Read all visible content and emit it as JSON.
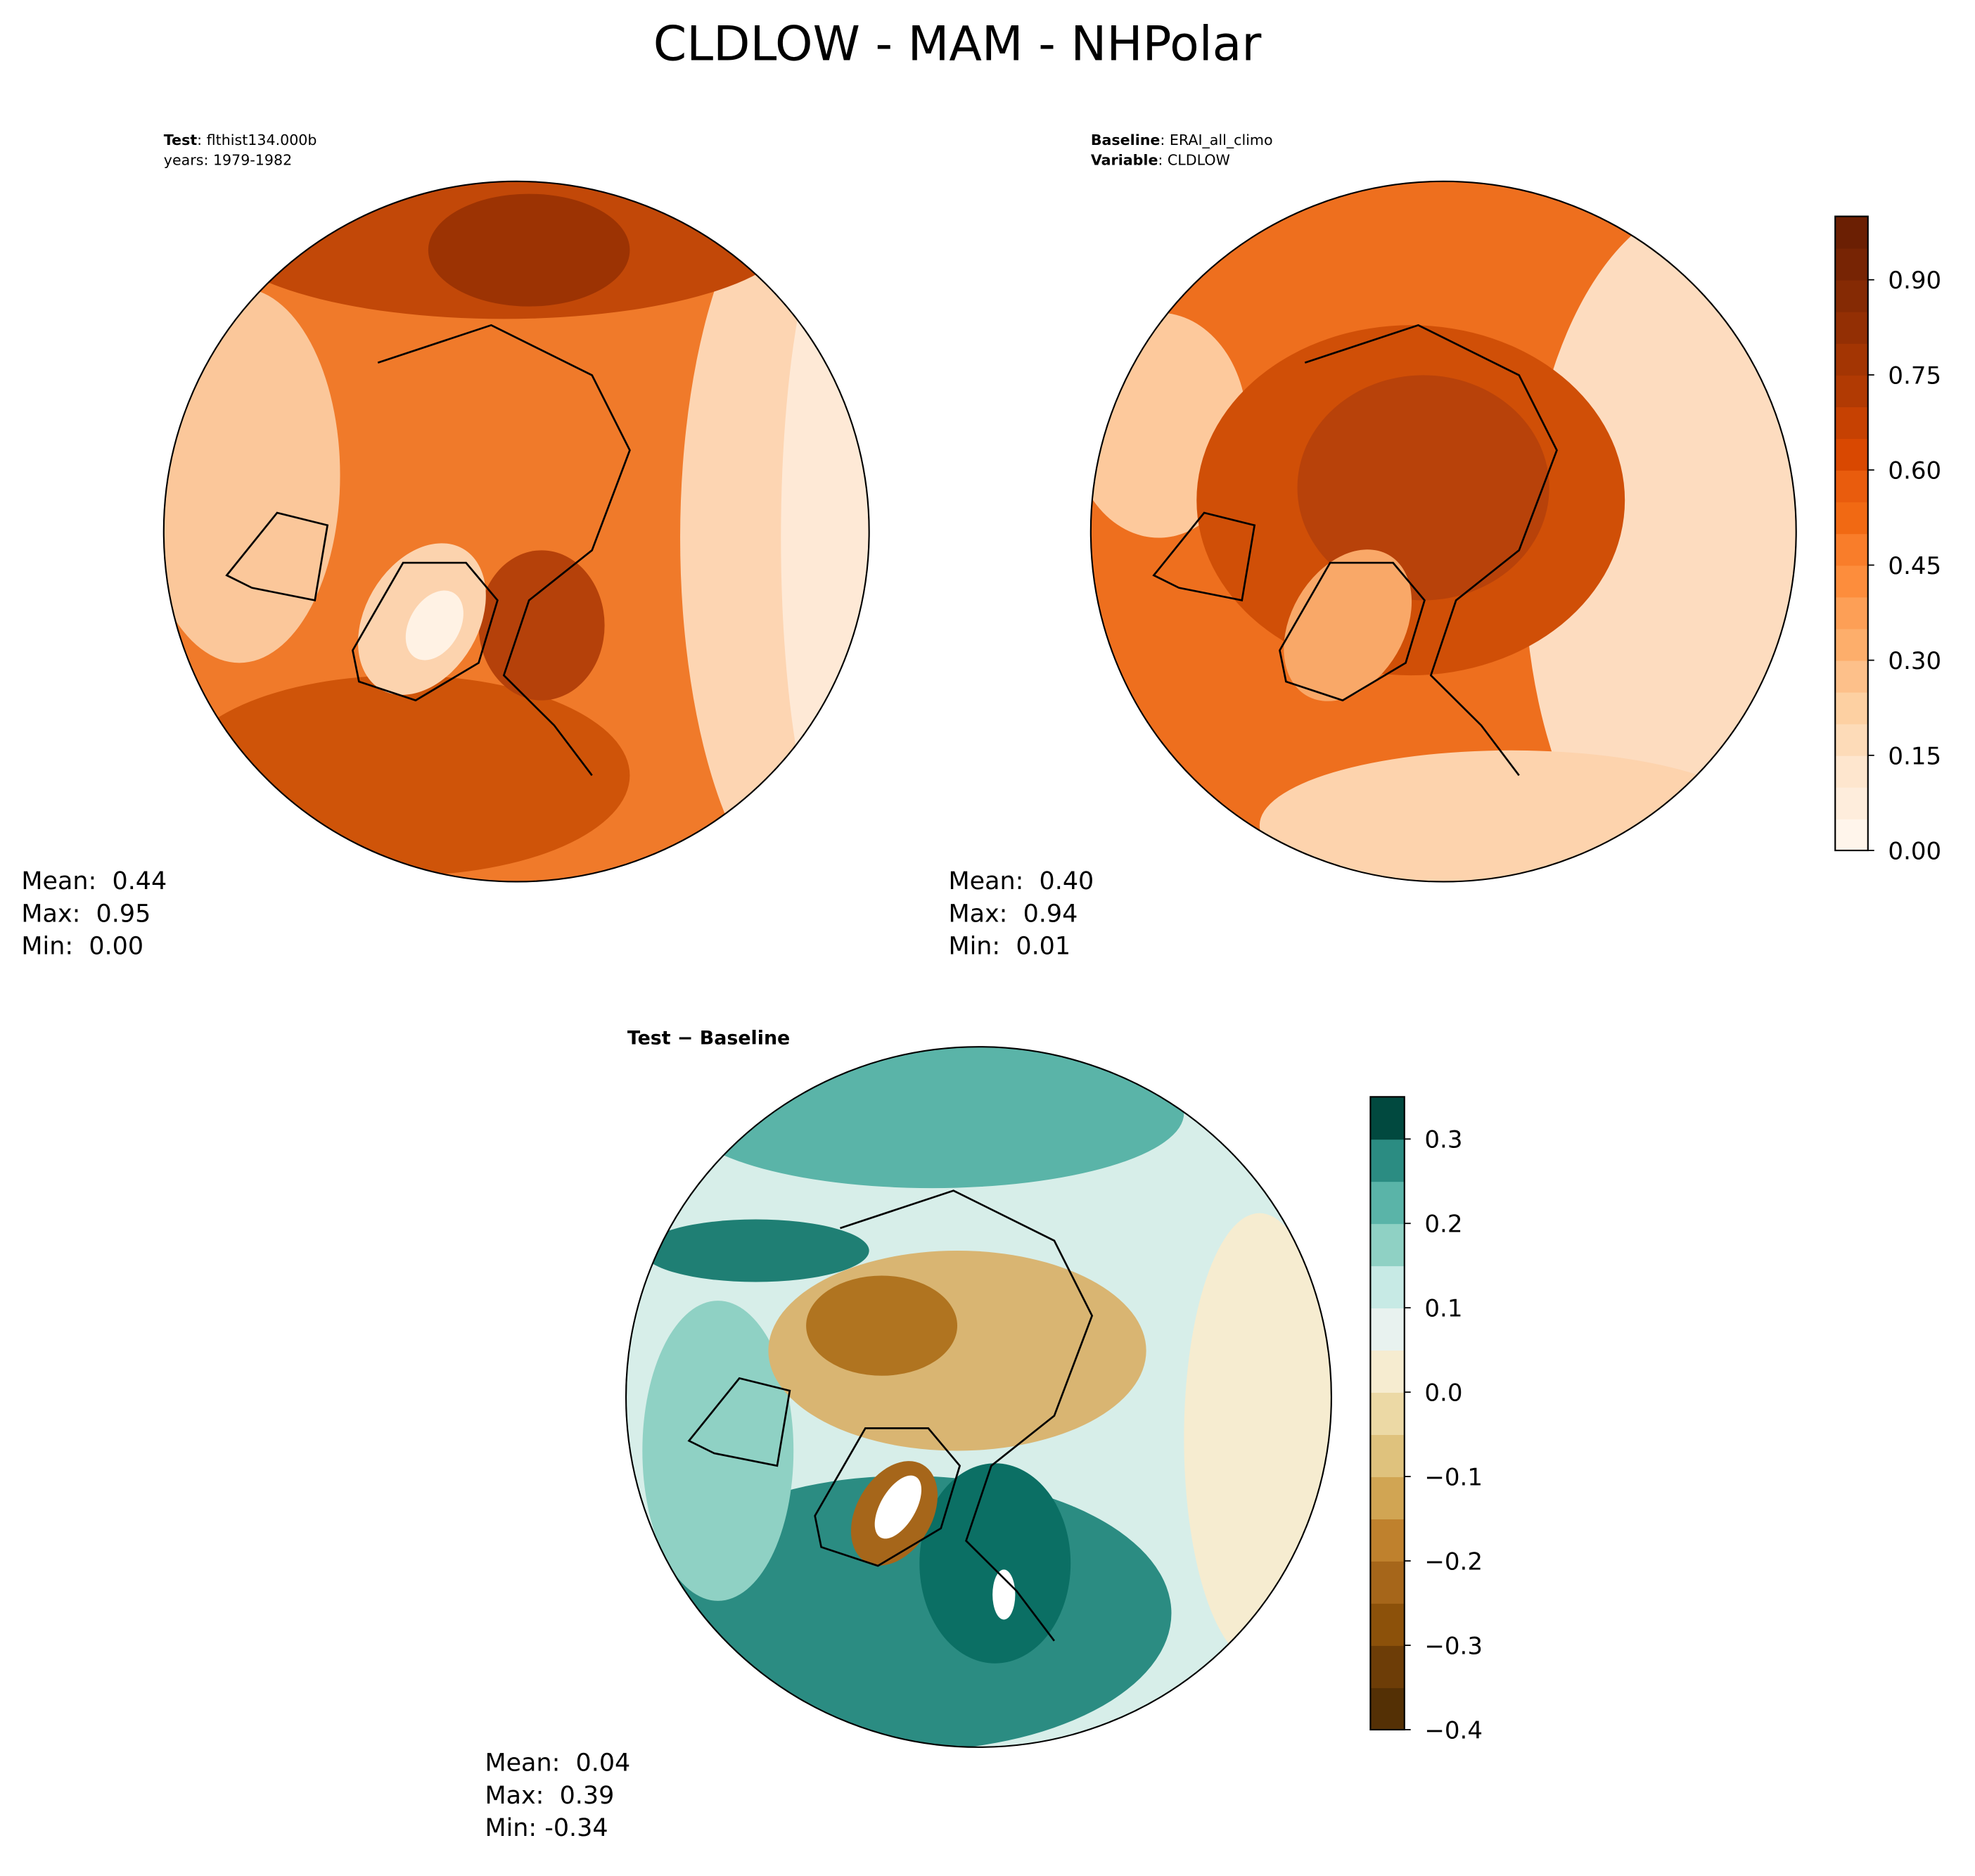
{
  "title": "CLDLOW - MAM - NHPolar",
  "panels": [
    {
      "header": [
        {
          "bold": "Test",
          "text": ": flthist134.000b"
        },
        {
          "text": "years: 1979-1982"
        }
      ],
      "stats": [
        "Mean:  0.44",
        "Max:  0.95",
        "Min:  0.00"
      ]
    },
    {
      "header": [
        {
          "bold": "Baseline",
          "text": ": ERAI_all_climo"
        },
        {
          "bold": "Variable",
          "text": ": CLDLOW"
        }
      ],
      "stats": [
        "Mean:  0.40",
        "Max:  0.94",
        "Min:  0.01"
      ]
    },
    {
      "header": [
        {
          "bold": "Test − Baseline"
        }
      ],
      "stats": [
        "Mean:  0.04",
        "Max:  0.39",
        "Min: -0.34"
      ]
    }
  ],
  "colorbars": [
    {
      "lim": [
        0,
        1.0
      ],
      "ticks": [
        {
          "value": 0,
          "label": "0.00"
        },
        {
          "value": 0.15,
          "label": "0.15"
        },
        {
          "value": 0.3,
          "label": "0.30"
        },
        {
          "value": 0.45,
          "label": "0.45"
        },
        {
          "value": 0.6,
          "label": "0.60"
        },
        {
          "value": 0.75,
          "label": "0.75"
        },
        {
          "value": 0.9,
          "label": "0.90"
        }
      ],
      "colors": [
        "#fff5eb",
        "#feeddc",
        "#fee6ce",
        "#fddbb8",
        "#fdd0a2",
        "#fdc08a",
        "#fdae6b",
        "#fd9f56",
        "#fd8d3c",
        "#f97d2a",
        "#f16913",
        "#e95c0d",
        "#d94801",
        "#c64102",
        "#b13a03",
        "#a33503",
        "#932f04",
        "#852a04",
        "#772404",
        "#6b1f03"
      ]
    },
    {
      "lim": [
        -0.4,
        0.35
      ],
      "ticks": [
        {
          "value": -0.4,
          "label": "−0.4"
        },
        {
          "value": -0.3,
          "label": "−0.3"
        },
        {
          "value": -0.2,
          "label": "−0.2"
        },
        {
          "value": -0.1,
          "label": "−0.1"
        },
        {
          "value": 0,
          "label": "0.0"
        },
        0.1,
        0.2,
        0.3
      ],
      "colors": [
        "#543005",
        "#6d3d07",
        "#8c510a",
        "#a6661a",
        "#bf812d",
        "#d1a553",
        "#dfc27d",
        "#ecd9a5",
        "#f6ecd0",
        "#e8f2ef",
        "#c7eae5",
        "#8fd1c4",
        "#5ab4a8",
        "#2b8c82",
        "#01493f"
      ]
    }
  ]
}
